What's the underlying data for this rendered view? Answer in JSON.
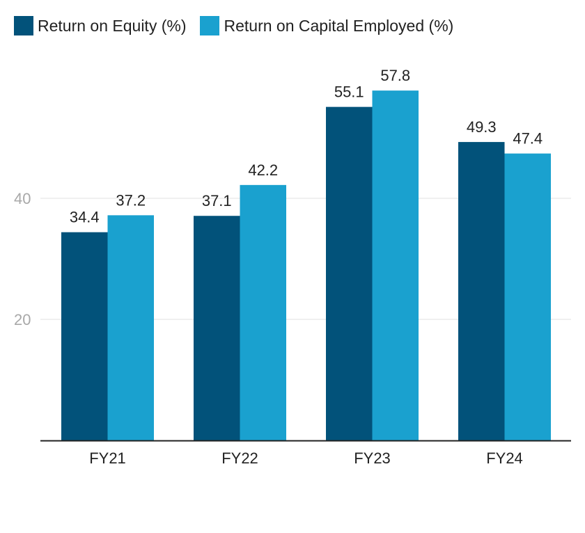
{
  "chart_data": {
    "type": "bar",
    "categories": [
      "FY21",
      "FY22",
      "FY23",
      "FY24"
    ],
    "series": [
      {
        "name": "Return on Equity (%)",
        "values": [
          34.4,
          37.1,
          55.1,
          49.3
        ],
        "color": "#02527a"
      },
      {
        "name": "Return on Capital Employed (%)",
        "values": [
          37.2,
          42.2,
          57.8,
          47.4
        ],
        "color": "#1aa1cf"
      }
    ],
    "yticks": [
      20,
      40
    ],
    "ylim": [
      0,
      60
    ],
    "grid": true,
    "legend": "top-left",
    "data_labels": true
  }
}
